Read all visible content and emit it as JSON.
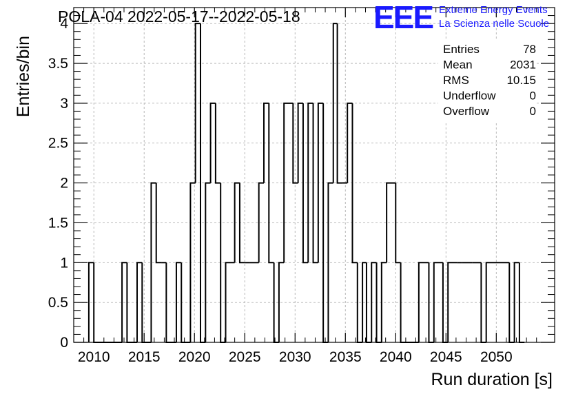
{
  "colors": {
    "logo": "#1a1aff",
    "line": "#000000",
    "grid": "#b0b0b0"
  },
  "logo": {
    "letters": "EEE",
    "line1": "Extreme Energy Events",
    "line2": "La Scienza nelle Scuole"
  },
  "stats": {
    "rows": [
      {
        "label": "Entries",
        "value": "78"
      },
      {
        "label": "Mean",
        "value": "2031"
      },
      {
        "label": "RMS",
        "value": "10.15"
      },
      {
        "label": "Underflow",
        "value": "0"
      },
      {
        "label": "Overflow",
        "value": "0"
      }
    ]
  },
  "chart_data": {
    "type": "histogram",
    "title": "POLA-04 2022-05-17--2022-05-18",
    "xlabel": "Run duration [s]",
    "ylabel": "Entries/bin",
    "xlim": [
      2008.0,
      2055.8
    ],
    "ylim": [
      0,
      4.2
    ],
    "xticks": [
      "2010",
      "2015",
      "2020",
      "2025",
      "2030",
      "2035",
      "2040",
      "2045",
      "2050"
    ],
    "yticks": [
      "0",
      "0.5",
      "1",
      "1.5",
      "2",
      "2.5",
      "3",
      "3.5",
      "4"
    ],
    "grid": true,
    "bin_edges": [
      2009.5,
      2010.0,
      2012.8,
      2013.3,
      2014.3,
      2014.8,
      2015.7,
      2016.2,
      2016.7,
      2017.2,
      2018.2,
      2018.7,
      2019.6,
      2020.1,
      2020.6,
      2021.1,
      2021.6,
      2022.1,
      2022.6,
      2023.1,
      2024.0,
      2024.5,
      2025.0,
      2025.5,
      2026.4,
      2026.9,
      2027.4,
      2027.9,
      2028.4,
      2028.9,
      2029.8,
      2030.3,
      2030.8,
      2031.3,
      2031.8,
      2032.3,
      2032.8,
      2033.3,
      2033.8,
      2034.2,
      2034.7,
      2035.2,
      2035.7,
      2036.2,
      2036.7,
      2037.1,
      2037.6,
      2038.1,
      2038.6,
      2039.1,
      2040.0,
      2040.5,
      2042.3,
      2043.3,
      2043.8,
      2044.7,
      2045.2,
      2046.1,
      2046.6,
      2047.6,
      2048.5,
      2049.0,
      2051.3,
      2051.8,
      2052.3,
      2052.8
    ],
    "bin_values": [
      1,
      0,
      1,
      0,
      1,
      0,
      2,
      1,
      1,
      0,
      1,
      0,
      2,
      4,
      0,
      2,
      3,
      2,
      0,
      1,
      2,
      1,
      1,
      1,
      2,
      3,
      1,
      0,
      1,
      3,
      2,
      3,
      1,
      3,
      1,
      3,
      0,
      2,
      4,
      2,
      2,
      3,
      1,
      0,
      1,
      0,
      1,
      0,
      1,
      2,
      1,
      0,
      1,
      0,
      1,
      0,
      1,
      1,
      1,
      1,
      0,
      1,
      0,
      1,
      0
    ]
  }
}
